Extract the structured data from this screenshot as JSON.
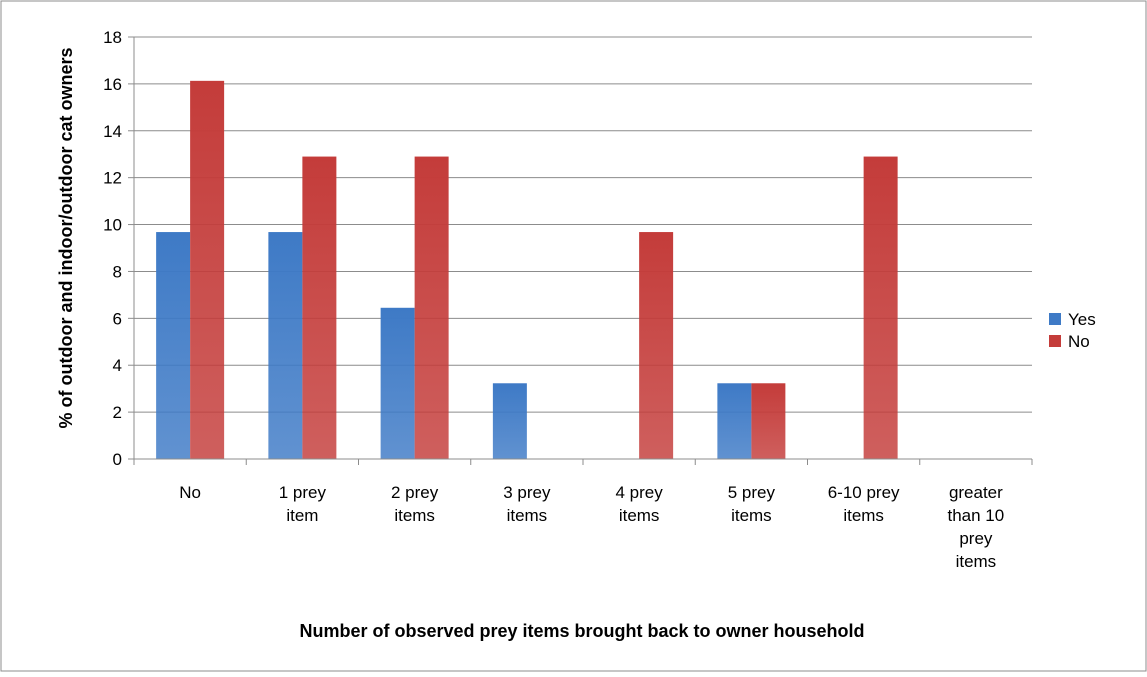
{
  "chart_data": {
    "type": "bar",
    "title": "",
    "xlabel": "Number of observed prey items brought back to owner household",
    "ylabel": "% of outdoor and indoor/outdoor cat owners",
    "ylim": [
      0,
      18
    ],
    "ytick_step": 2,
    "grid": true,
    "legend_position": "right",
    "categories": [
      "No",
      "1 prey item",
      "2 prey items",
      "3 prey items",
      "4 prey items",
      "5 prey items",
      "6-10 prey items",
      "greater than 10 prey items"
    ],
    "category_lines": [
      [
        "No"
      ],
      [
        "1 prey",
        "item"
      ],
      [
        "2 prey",
        "items"
      ],
      [
        "3 prey",
        "items"
      ],
      [
        "4 prey",
        "items"
      ],
      [
        "5 prey",
        "items"
      ],
      [
        "6-10 prey",
        "items"
      ],
      [
        "greater",
        "than 10",
        "prey",
        "items"
      ]
    ],
    "series": [
      {
        "name": "Yes",
        "color": "#3e7ac6",
        "values": [
          9.68,
          9.68,
          6.45,
          3.23,
          0,
          3.23,
          0,
          0
        ]
      },
      {
        "name": "No",
        "color": "#c43c3a",
        "values": [
          16.13,
          12.9,
          12.9,
          0,
          9.68,
          3.23,
          12.9,
          0
        ]
      }
    ]
  }
}
